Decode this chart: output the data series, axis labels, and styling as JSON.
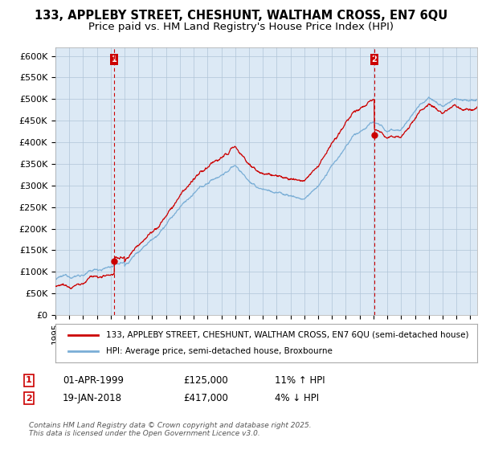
{
  "title": "133, APPLEBY STREET, CHESHUNT, WALTHAM CROSS, EN7 6QU",
  "subtitle": "Price paid vs. HM Land Registry's House Price Index (HPI)",
  "ylim": [
    0,
    620000
  ],
  "yticks": [
    0,
    50000,
    100000,
    150000,
    200000,
    250000,
    300000,
    350000,
    400000,
    450000,
    500000,
    550000,
    600000
  ],
  "ytick_labels": [
    "£0",
    "£50K",
    "£100K",
    "£150K",
    "£200K",
    "£250K",
    "£300K",
    "£350K",
    "£400K",
    "£450K",
    "£500K",
    "£550K",
    "£600K"
  ],
  "legend_line1": "133, APPLEBY STREET, CHESHUNT, WALTHAM CROSS, EN7 6QU (semi-detached house)",
  "legend_line2": "HPI: Average price, semi-detached house, Broxbourne",
  "annotation1_label": "1",
  "annotation1_date": "01-APR-1999",
  "annotation1_price": "£125,000",
  "annotation1_hpi": "11% ↑ HPI",
  "annotation2_label": "2",
  "annotation2_date": "19-JAN-2018",
  "annotation2_price": "£417,000",
  "annotation2_hpi": "4% ↓ HPI",
  "footnote": "Contains HM Land Registry data © Crown copyright and database right 2025.\nThis data is licensed under the Open Government Licence v3.0.",
  "line_color_red": "#cc0000",
  "line_color_blue": "#7aaed6",
  "vline_color": "#cc0000",
  "bg_plot": "#dce9f5",
  "background_color": "#ffffff",
  "grid_color": "#b0c4d8",
  "title_fontsize": 10.5,
  "subtitle_fontsize": 9.5,
  "tick_fontsize": 8,
  "sale1_year": 1999.25,
  "sale1_price": 125000,
  "sale2_year": 2018.05,
  "sale2_price": 417000,
  "xlim_start": 1995,
  "xlim_end": 2025.5
}
